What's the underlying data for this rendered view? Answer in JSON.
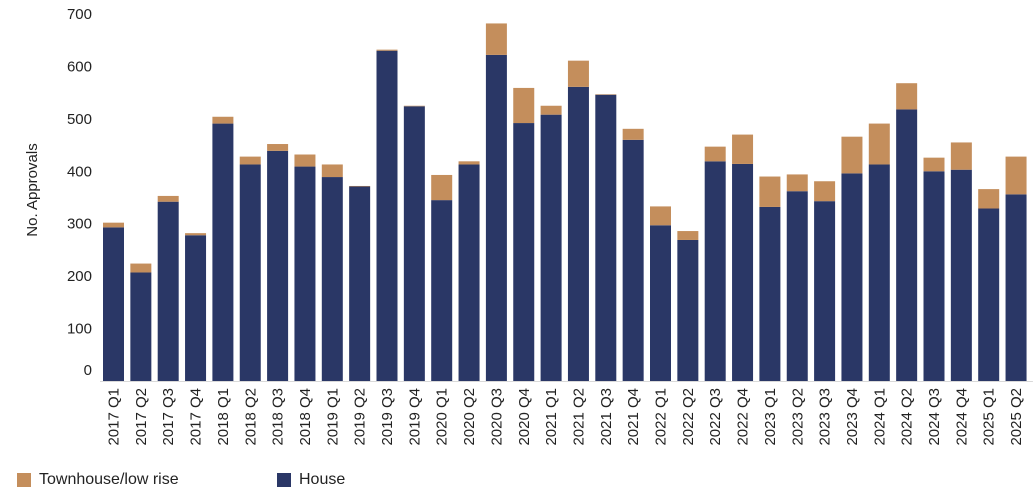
{
  "chart_data": {
    "type": "bar",
    "stacked": true,
    "ylabel": "No. Approvals",
    "ylim": [
      0,
      700
    ],
    "yticks": [
      0,
      100,
      200,
      300,
      400,
      500,
      600,
      700
    ],
    "categories": [
      "2017 Q1",
      "2017 Q2",
      "2017 Q3",
      "2017 Q4",
      "2018 Q1",
      "2018 Q2",
      "2018 Q3",
      "2018 Q4",
      "2019 Q1",
      "2019 Q2",
      "2019 Q3",
      "2019 Q4",
      "2020 Q1",
      "2020 Q2",
      "2020 Q3",
      "2020 Q4",
      "2021 Q1",
      "2021 Q2",
      "2021 Q3",
      "2021 Q4",
      "2022 Q1",
      "2022 Q2",
      "2022 Q3",
      "2022 Q4",
      "2023 Q1",
      "2023 Q2",
      "2023 Q3",
      "2023 Q4",
      "2024 Q1",
      "2024 Q2",
      "2024 Q3",
      "2024 Q4",
      "2025 Q1",
      "2025 Q2"
    ],
    "series": [
      {
        "name": "House",
        "color": "#2a3766",
        "values": [
          293,
          207,
          342,
          278,
          491,
          413,
          439,
          409,
          389,
          371,
          630,
          524,
          345,
          413,
          622,
          492,
          508,
          561,
          546,
          460,
          297,
          269,
          419,
          414,
          332,
          362,
          343,
          396,
          413,
          518,
          400,
          403,
          329,
          356
        ]
      },
      {
        "name": "Townhouse/low rise",
        "color": "#c48e5c",
        "values": [
          9,
          17,
          11,
          4,
          13,
          15,
          13,
          23,
          24,
          1,
          2,
          1,
          48,
          6,
          60,
          67,
          17,
          50,
          1,
          21,
          36,
          17,
          28,
          56,
          58,
          32,
          38,
          70,
          78,
          50,
          26,
          52,
          37,
          72
        ]
      }
    ],
    "legend": {
      "position": "bottom-left",
      "entries": [
        "Townhouse/low rise",
        "House"
      ]
    },
    "grid": false
  }
}
